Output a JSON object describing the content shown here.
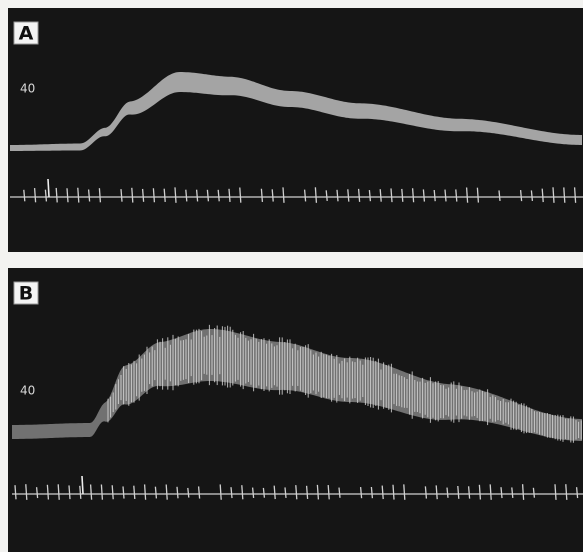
{
  "panels": [
    {
      "label": "A",
      "scale_label": "40"
    },
    {
      "label": "B",
      "scale_label": "40"
    }
  ]
}
